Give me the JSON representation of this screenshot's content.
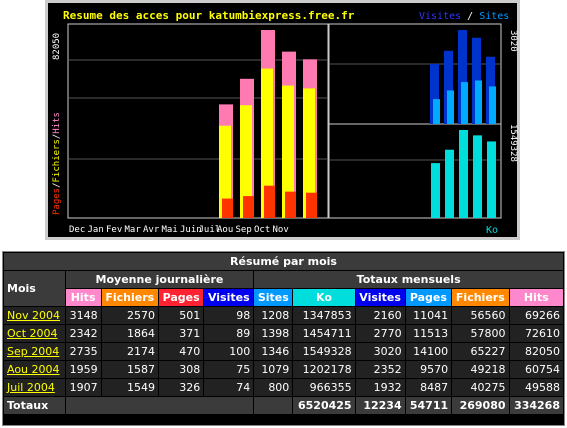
{
  "chart": {
    "title": "Resume des acces pour katumbiexpress.free.fr",
    "legend_left": [
      {
        "text": "Pages",
        "color": "#ff3300"
      },
      {
        "text": "Fichiers",
        "color": "#ffff00"
      },
      {
        "text": "Hits",
        "color": "#ff88cc"
      }
    ],
    "legend_left_sep": "/",
    "legend_right_top": [
      {
        "text": "Visites",
        "color": "#3333ff"
      },
      {
        "text": "Sites",
        "color": "#0099ff"
      }
    ],
    "legend_right_sep": "/",
    "legend_right_bottom": {
      "text": "Ko",
      "color": "#00dddd"
    },
    "left_axis_max_label": "82050",
    "right_top_axis_max_label": "3020",
    "right_bottom_axis_max_label": "1549328",
    "colors": {
      "bg": "#000000",
      "frame": "#cccccc",
      "grid": "#555555",
      "hits": "#ff7ab0",
      "files": "#ffff00",
      "pages": "#ff3300",
      "visits": "#0033cc",
      "sites": "#00aaff",
      "ko": "#00dddd"
    }
  },
  "chart_data": {
    "type": "bar",
    "categories": [
      "Dec",
      "Jan",
      "Fev",
      "Mar",
      "Avr",
      "Mai",
      "Juin",
      "Juil",
      "Aou",
      "Sep",
      "Oct",
      "Nov"
    ],
    "series": [
      {
        "name": "Hits",
        "values": [
          0,
          0,
          0,
          0,
          0,
          0,
          0,
          49588,
          60754,
          82050,
          72610,
          69266
        ]
      },
      {
        "name": "Fichiers",
        "values": [
          0,
          0,
          0,
          0,
          0,
          0,
          0,
          40275,
          49218,
          65227,
          57800,
          56560
        ]
      },
      {
        "name": "Pages",
        "values": [
          0,
          0,
          0,
          0,
          0,
          0,
          0,
          8487,
          9570,
          14100,
          11513,
          11041
        ]
      },
      {
        "name": "Visites",
        "values": [
          0,
          0,
          0,
          0,
          0,
          0,
          0,
          1932,
          2352,
          3020,
          2770,
          2160
        ]
      },
      {
        "name": "Sites",
        "values": [
          0,
          0,
          0,
          0,
          0,
          0,
          0,
          800,
          1079,
          1346,
          1398,
          1208
        ]
      },
      {
        "name": "Ko",
        "values": [
          0,
          0,
          0,
          0,
          0,
          0,
          0,
          966355,
          1202178,
          1549328,
          1454711,
          1347853
        ]
      }
    ],
    "left_ylim": [
      0,
      82050
    ],
    "visits_ylim": [
      0,
      3020
    ],
    "ko_ylim": [
      0,
      1549328
    ]
  },
  "table": {
    "title": "Résumé par mois",
    "mois_label": "Mois",
    "group_daily": "Moyenne journalière",
    "group_monthly": "Totaux mensuels",
    "headers_daily": [
      {
        "label": "Hits",
        "cls": "h-hits"
      },
      {
        "label": "Fichiers",
        "cls": "h-files"
      },
      {
        "label": "Pages",
        "cls": "h-pages"
      },
      {
        "label": "Visites",
        "cls": "h-visits"
      }
    ],
    "headers_monthly": [
      {
        "label": "Sites",
        "cls": "h-sites"
      },
      {
        "label": "Ko",
        "cls": "h-ko"
      },
      {
        "label": "Visites",
        "cls": "h-visits"
      },
      {
        "label": "Pages",
        "cls": "h-sites"
      },
      {
        "label": "Fichiers",
        "cls": "h-files"
      },
      {
        "label": "Hits",
        "cls": "h-hits"
      }
    ],
    "rows": [
      {
        "month": "Nov 2004",
        "cells": [
          "3148",
          "2570",
          "501",
          "98",
          "1208",
          "1347853",
          "2160",
          "11041",
          "56560",
          "69266"
        ]
      },
      {
        "month": "Oct 2004",
        "cells": [
          "2342",
          "1864",
          "371",
          "89",
          "1398",
          "1454711",
          "2770",
          "11513",
          "57800",
          "72610"
        ]
      },
      {
        "month": "Sep 2004",
        "cells": [
          "2735",
          "2174",
          "470",
          "100",
          "1346",
          "1549328",
          "3020",
          "14100",
          "65227",
          "82050"
        ]
      },
      {
        "month": "Aou 2004",
        "cells": [
          "1959",
          "1587",
          "308",
          "75",
          "1079",
          "1202178",
          "2352",
          "9570",
          "49218",
          "60754"
        ]
      },
      {
        "month": "Juil 2004",
        "cells": [
          "1907",
          "1549",
          "326",
          "74",
          "800",
          "966355",
          "1932",
          "8487",
          "40275",
          "49588"
        ]
      }
    ],
    "totals_label": "Totaux",
    "totals": [
      "6520425",
      "12234",
      "54711",
      "269080",
      "334268"
    ]
  }
}
